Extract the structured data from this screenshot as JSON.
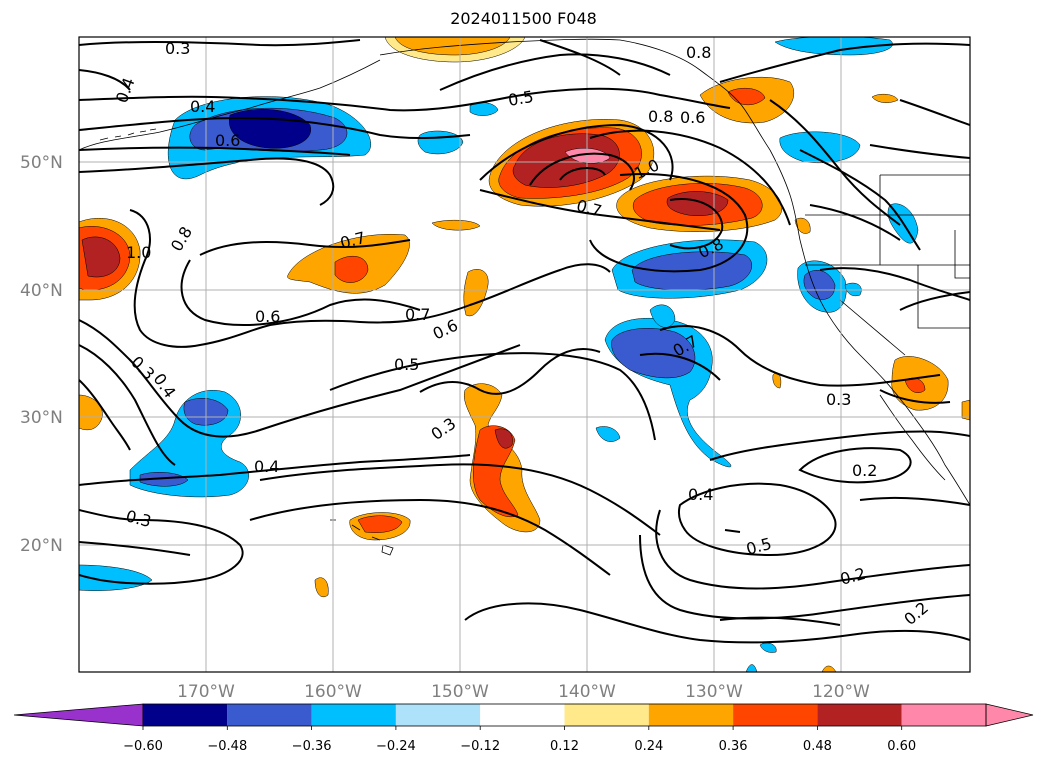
{
  "title": "2024011500 F048",
  "lat_labels": [
    "50°N",
    "40°N",
    "30°N",
    "20°N"
  ],
  "lon_labels": [
    "170°W",
    "160°W",
    "150°W",
    "140°W",
    "130°W",
    "120°W"
  ],
  "contour_labels": [
    "0.3",
    "0.4",
    "0.4",
    "0.6",
    "0.5",
    "0.8",
    "0.8",
    "0.6",
    "1.0",
    "0.7",
    "1.0",
    "0.8",
    "0.7",
    "0.8",
    "0.6",
    "0.7",
    "0.6",
    "0.5",
    "0.7",
    "0.3",
    "0.4",
    "0.3",
    "0.4",
    "0.3",
    "0.2",
    "0.4",
    "0.5",
    "0.2",
    "0.2",
    "0.3"
  ],
  "colorbar": {
    "ticks": [
      "−0.60",
      "−0.48",
      "−0.36",
      "−0.24",
      "−0.12",
      "0.12",
      "0.24",
      "0.36",
      "0.48",
      "0.60"
    ],
    "colors": {
      "under": "#9932cc",
      "levels": [
        "#00008b",
        "#3a5bd0",
        "#00bfff",
        "#aee1fa",
        "#ffffff",
        "#ffe98a",
        "#ffa500",
        "#ff4500",
        "#b22222",
        "#ff88aa"
      ],
      "over": "#ff88aa"
    }
  }
}
